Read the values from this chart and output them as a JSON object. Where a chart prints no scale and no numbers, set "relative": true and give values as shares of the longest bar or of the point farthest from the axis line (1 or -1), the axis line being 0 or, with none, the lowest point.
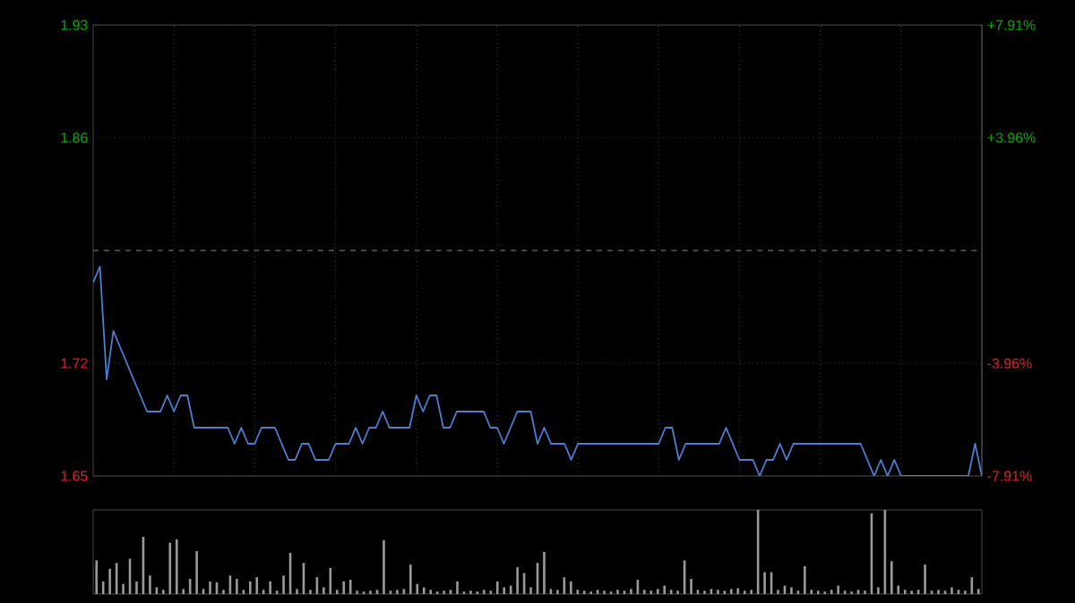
{
  "chart_data": [
    {
      "type": "line",
      "categories": [
        null,
        null,
        null,
        null,
        null,
        null,
        null,
        null,
        null,
        null,
        null,
        null,
        null,
        null,
        null,
        null,
        null,
        null,
        null,
        null,
        null,
        null,
        null,
        null,
        null,
        null,
        null,
        null,
        null,
        null,
        null,
        null,
        null,
        null,
        null,
        null,
        null,
        null,
        null,
        null,
        null,
        null,
        null,
        null,
        null,
        null,
        null,
        null,
        null,
        null,
        null,
        null,
        null,
        null,
        null,
        null,
        null,
        null,
        null,
        null,
        null,
        null,
        null,
        null,
        null,
        null,
        null,
        null,
        null,
        null,
        null,
        null,
        null,
        null,
        null,
        null,
        null,
        null,
        null,
        null,
        null,
        null,
        null,
        null,
        null,
        null,
        null,
        null,
        null,
        null,
        null,
        null,
        null,
        null,
        null,
        null,
        null,
        null,
        null,
        null,
        null,
        null,
        null,
        null,
        null,
        null,
        null,
        null,
        null,
        null,
        null,
        null,
        null,
        null,
        null,
        null,
        null,
        null,
        null,
        null,
        null,
        null,
        null,
        null,
        null,
        null,
        null,
        null,
        null,
        null,
        null,
        null,
        null
      ],
      "series": [
        {
          "color": "#4a7fd4",
          "values": [
            1.77,
            1.78,
            1.71,
            1.74,
            1.73,
            1.72,
            1.71,
            1.7,
            1.69,
            1.69,
            1.69,
            1.7,
            1.69,
            1.7,
            1.7,
            1.68,
            1.68,
            1.68,
            1.68,
            1.68,
            1.68,
            1.67,
            1.68,
            1.67,
            1.67,
            1.68,
            1.68,
            1.68,
            1.67,
            1.66,
            1.66,
            1.67,
            1.67,
            1.66,
            1.66,
            1.66,
            1.67,
            1.67,
            1.67,
            1.68,
            1.67,
            1.68,
            1.68,
            1.69,
            1.68,
            1.68,
            1.68,
            1.68,
            1.7,
            1.69,
            1.7,
            1.7,
            1.68,
            1.68,
            1.69,
            1.69,
            1.69,
            1.69,
            1.69,
            1.68,
            1.68,
            1.67,
            1.68,
            1.69,
            1.69,
            1.69,
            1.67,
            1.68,
            1.67,
            1.67,
            1.67,
            1.66,
            1.67,
            1.67,
            1.67,
            1.67,
            1.67,
            1.67,
            1.67,
            1.67,
            1.67,
            1.67,
            1.67,
            1.67,
            1.67,
            1.68,
            1.68,
            1.66,
            1.67,
            1.67,
            1.67,
            1.67,
            1.67,
            1.67,
            1.68,
            1.67,
            1.66,
            1.66,
            1.66,
            1.65,
            1.66,
            1.66,
            1.67,
            1.66,
            1.67,
            1.67,
            1.67,
            1.67,
            1.67,
            1.67,
            1.67,
            1.67,
            1.67,
            1.67,
            1.67,
            1.66,
            1.65,
            1.66,
            1.65,
            1.66,
            1.65,
            1.65,
            1.65,
            1.65,
            1.65,
            1.65,
            1.65,
            1.65,
            1.65,
            1.65,
            1.65,
            1.67,
            1.65
          ]
        }
      ],
      "ylim": [
        1.65,
        1.93
      ],
      "yticks": [
        1.65,
        1.72,
        1.86,
        1.93
      ],
      "y2lim": [
        -7.91,
        7.91
      ],
      "y2ticks": [
        {
          "value": -7.91,
          "label": "-7.91%"
        },
        {
          "value": -3.96,
          "label": "-3.96%"
        },
        {
          "value": 3.96,
          "label": "+3.96%"
        },
        {
          "value": 7.91,
          "label": "+7.91%"
        }
      ],
      "ref_lines": [
        {
          "axis": "y",
          "value": 1.79,
          "line_style": "dashed"
        }
      ],
      "grid": true,
      "tick_labels": "y",
      "marker": "none",
      "line_style": "solid"
    },
    {
      "type": "bar",
      "relative": true,
      "categories": [
        null,
        null,
        null,
        null,
        null,
        null,
        null,
        null,
        null,
        null,
        null,
        null,
        null,
        null,
        null,
        null,
        null,
        null,
        null,
        null,
        null,
        null,
        null,
        null,
        null,
        null,
        null,
        null,
        null,
        null,
        null,
        null,
        null,
        null,
        null,
        null,
        null,
        null,
        null,
        null,
        null,
        null,
        null,
        null,
        null,
        null,
        null,
        null,
        null,
        null,
        null,
        null,
        null,
        null,
        null,
        null,
        null,
        null,
        null,
        null,
        null,
        null,
        null,
        null,
        null,
        null,
        null,
        null,
        null,
        null,
        null,
        null,
        null,
        null,
        null,
        null,
        null,
        null,
        null,
        null,
        null,
        null,
        null,
        null,
        null,
        null,
        null,
        null,
        null,
        null,
        null,
        null,
        null,
        null,
        null,
        null,
        null,
        null,
        null,
        null,
        null,
        null,
        null,
        null,
        null,
        null,
        null,
        null,
        null,
        null,
        null,
        null,
        null,
        null,
        null,
        null,
        null,
        null,
        null,
        null,
        null,
        null,
        null,
        null,
        null,
        null,
        null,
        null,
        null,
        null,
        null,
        null,
        null
      ],
      "color": "#9a9a9a",
      "values": [
        0.4,
        0.15,
        0.3,
        0.37,
        0.12,
        0.42,
        0.15,
        0.68,
        0.22,
        0.08,
        0.05,
        0.61,
        0.65,
        0.06,
        0.18,
        0.51,
        0.06,
        0.15,
        0.14,
        0.05,
        0.22,
        0.18,
        0.05,
        0.15,
        0.2,
        0.05,
        0.15,
        0.04,
        0.22,
        0.49,
        0.06,
        0.37,
        0.05,
        0.2,
        0.08,
        0.31,
        0.05,
        0.15,
        0.17,
        0.04,
        0.03,
        0.04,
        0.05,
        0.64,
        0.04,
        0.05,
        0.06,
        0.35,
        0.12,
        0.08,
        0.05,
        0.03,
        0.04,
        0.05,
        0.15,
        0.03,
        0.04,
        0.03,
        0.05,
        0.04,
        0.15,
        0.08,
        0.1,
        0.32,
        0.25,
        0.08,
        0.37,
        0.5,
        0.06,
        0.05,
        0.2,
        0.15,
        0.05,
        0.04,
        0.03,
        0.05,
        0.04,
        0.03,
        0.05,
        0.04,
        0.06,
        0.17,
        0.05,
        0.04,
        0.06,
        0.1,
        0.05,
        0.04,
        0.4,
        0.18,
        0.05,
        0.04,
        0.06,
        0.05,
        0.04,
        0.06,
        0.07,
        0.04,
        0.05,
        1.0,
        0.26,
        0.26,
        0.05,
        0.1,
        0.08,
        0.04,
        0.33,
        0.05,
        0.04,
        0.03,
        0.05,
        0.1,
        0.04,
        0.03,
        0.05,
        0.04,
        0.96,
        0.08,
        1.0,
        0.39,
        0.1,
        0.05,
        0.04,
        0.05,
        0.35,
        0.04,
        0.05,
        0.04,
        0.08,
        0.05,
        0.04,
        0.2,
        0.06
      ],
      "tick_labels": false
    }
  ]
}
